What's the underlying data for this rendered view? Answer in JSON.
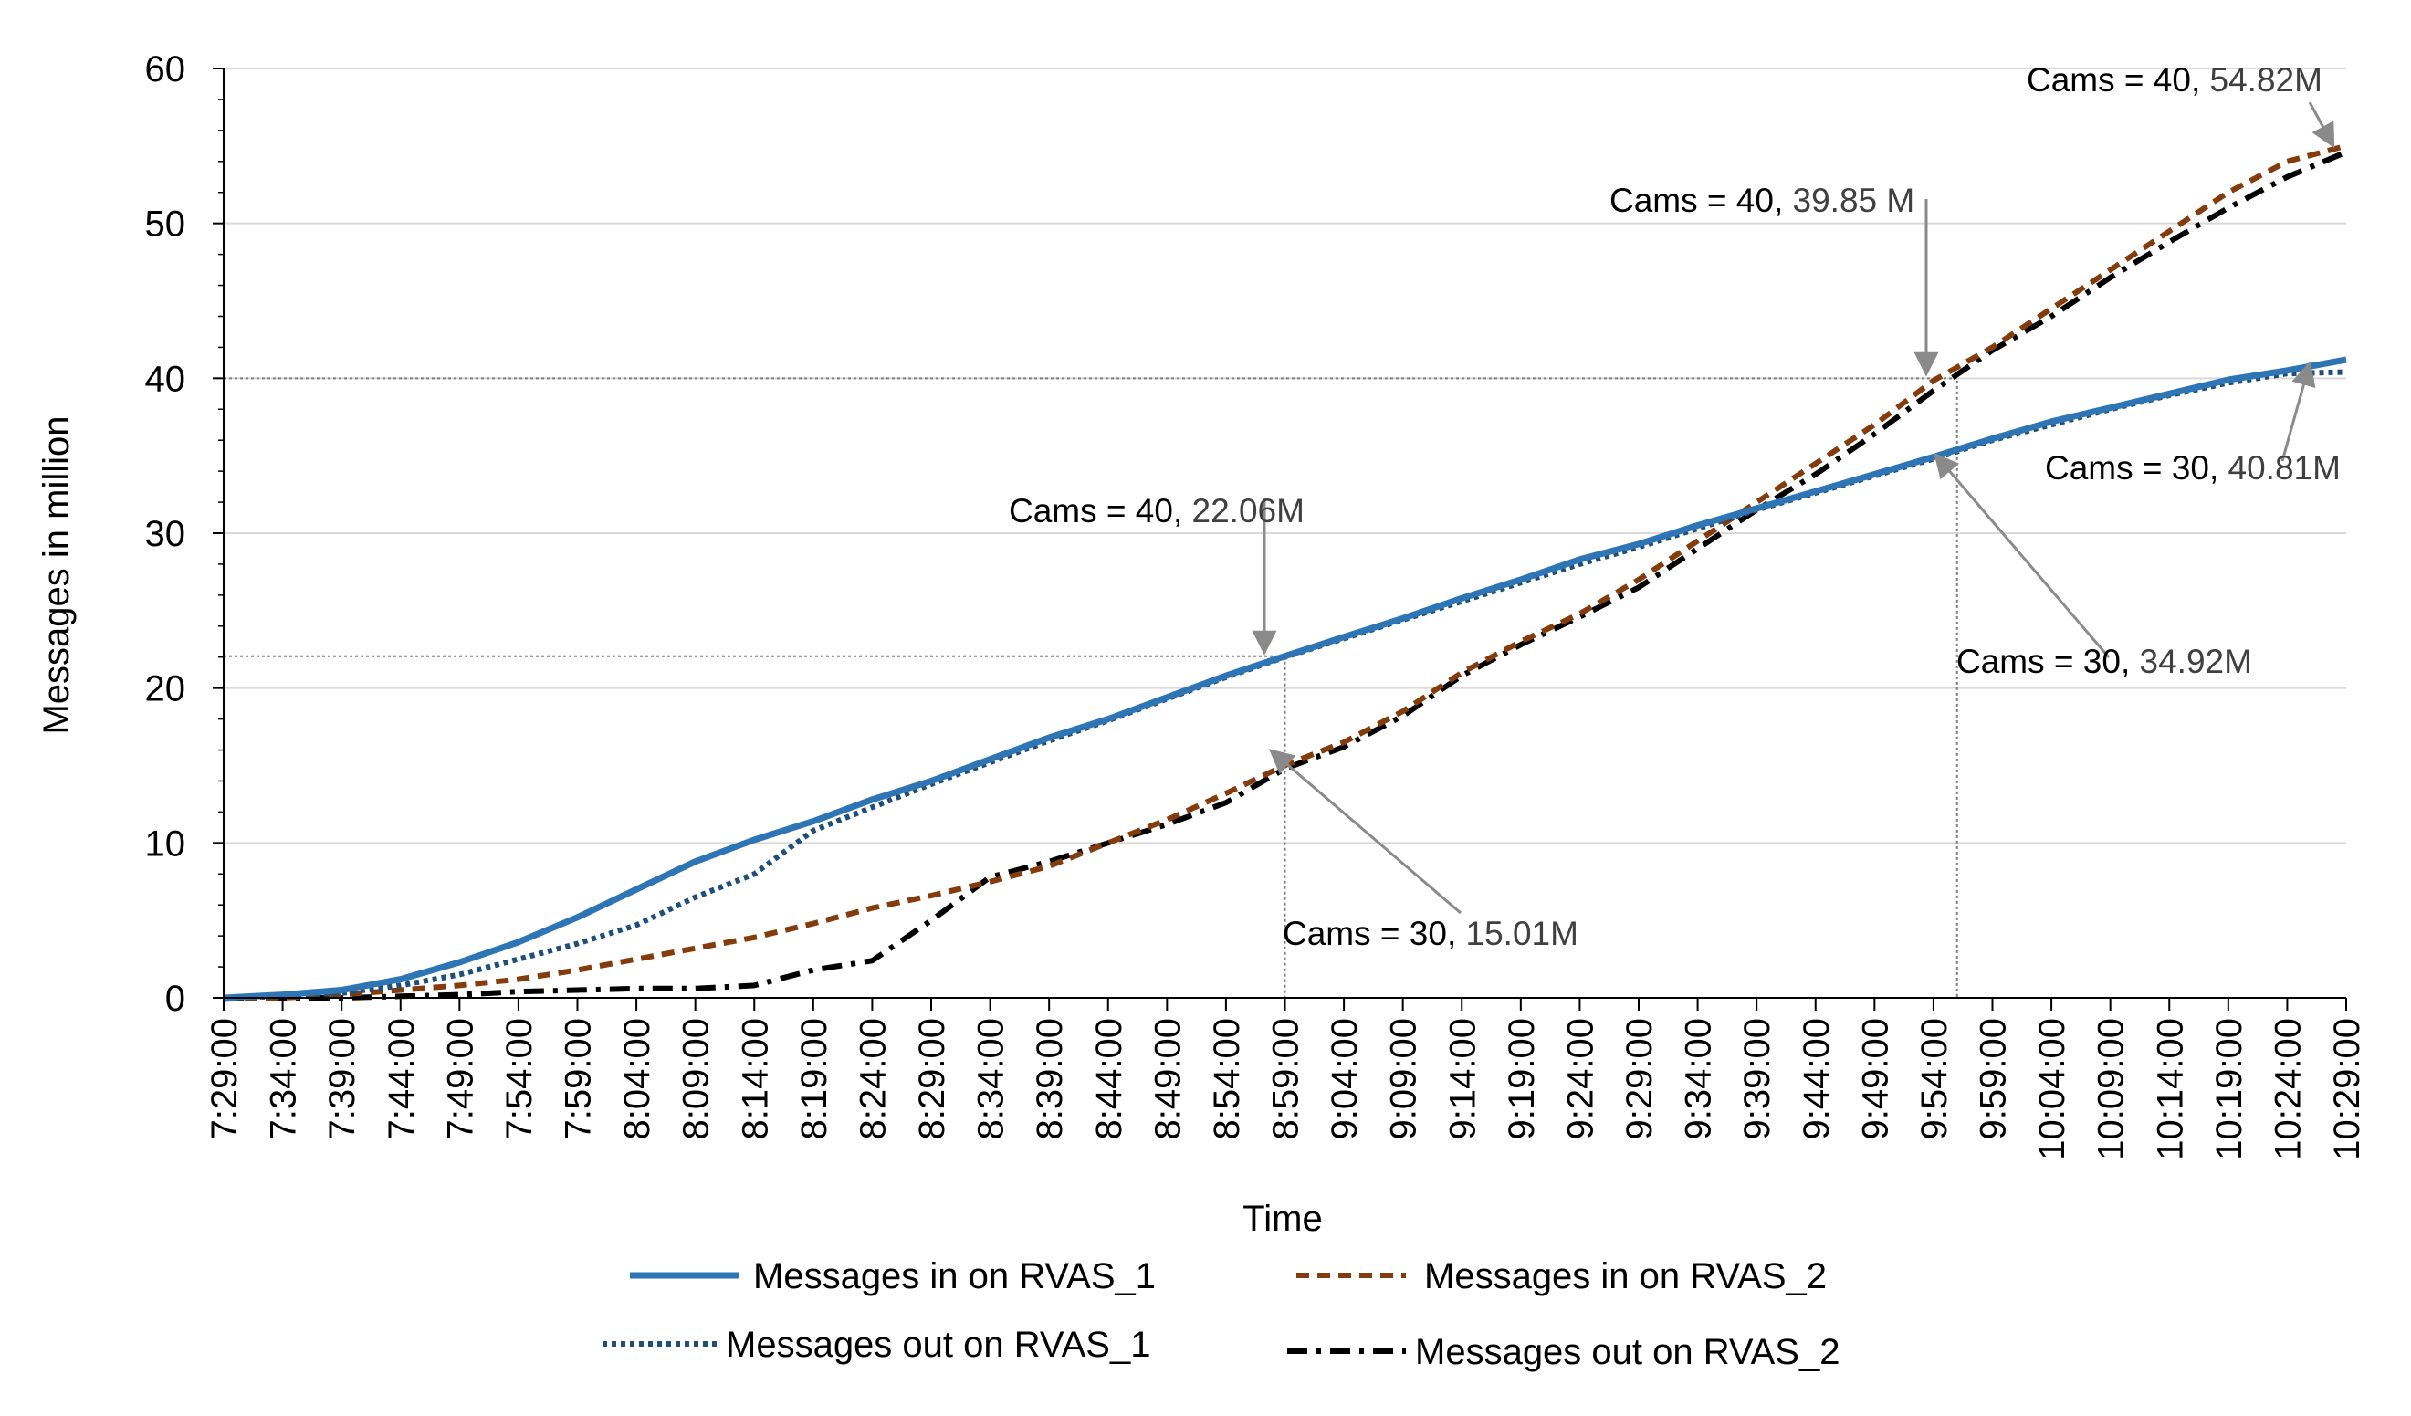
{
  "chart_data": {
    "type": "line",
    "title": "",
    "xlabel": "Time",
    "ylabel": "Messages in million",
    "ylim": [
      0,
      60
    ],
    "yticks": [
      0,
      10,
      20,
      30,
      40,
      50,
      60
    ],
    "grid": "horizontal",
    "legend_position": "bottom",
    "x_tick_labels": [
      "7:29:00",
      "7:34:00",
      "7:39:00",
      "7:44:00",
      "7:49:00",
      "7:54:00",
      "7:59:00",
      "8:04:00",
      "8:09:00",
      "8:14:00",
      "8:19:00",
      "8:24:00",
      "8:29:00",
      "8:34:00",
      "8:39:00",
      "8:44:00",
      "8:49:00",
      "8:54:00",
      "8:59:00",
      "9:04:00",
      "9:09:00",
      "9:14:00",
      "9:19:00",
      "9:24:00",
      "9:29:00",
      "9:34:00",
      "9:39:00",
      "9:44:00",
      "9:49:00",
      "9:54:00",
      "9:59:00",
      "10:04:00",
      "10:09:00",
      "10:14:00",
      "10:19:00",
      "10:24:00",
      "10:29:00"
    ],
    "x_unit": "minutes since 7:29:00",
    "xlim": [
      0,
      180
    ],
    "series": [
      {
        "name": "Messages in on RVAS_1",
        "color": "#2E75B6",
        "style": "solid",
        "x": [
          0,
          5,
          10,
          15,
          20,
          25,
          30,
          35,
          40,
          45,
          50,
          55,
          60,
          65,
          70,
          75,
          80,
          85,
          90,
          95,
          100,
          105,
          110,
          115,
          120,
          125,
          130,
          135,
          140,
          145,
          150,
          155,
          160,
          165,
          170,
          175,
          180
        ],
        "y": [
          0,
          0.2,
          0.5,
          1.2,
          2.3,
          3.6,
          5.2,
          7.0,
          8.8,
          10.2,
          11.4,
          12.8,
          14.0,
          15.4,
          16.8,
          18.0,
          19.4,
          20.8,
          22.06,
          23.3,
          24.5,
          25.8,
          27.0,
          28.3,
          29.3,
          30.5,
          31.6,
          32.7,
          33.8,
          34.92,
          36.1,
          37.2,
          38.1,
          39.0,
          39.9,
          40.5,
          41.2
        ]
      },
      {
        "name": "Messages in on RVAS_2",
        "color": "#843C0C",
        "style": "dashed",
        "x": [
          0,
          5,
          10,
          15,
          20,
          25,
          30,
          35,
          40,
          45,
          50,
          55,
          60,
          65,
          70,
          75,
          80,
          85,
          90,
          95,
          100,
          105,
          110,
          115,
          120,
          125,
          130,
          135,
          140,
          145,
          150,
          155,
          160,
          165,
          170,
          175,
          180
        ],
        "y": [
          0,
          0,
          0.2,
          0.5,
          0.8,
          1.2,
          1.8,
          2.5,
          3.2,
          3.9,
          4.8,
          5.8,
          6.6,
          7.5,
          8.5,
          10.0,
          11.5,
          13.2,
          15.01,
          16.5,
          18.5,
          21.0,
          23.0,
          24.8,
          27.0,
          29.5,
          32.0,
          34.5,
          37.0,
          39.85,
          42.0,
          44.5,
          47.0,
          49.5,
          52.0,
          54.0,
          55.0
        ]
      },
      {
        "name": "Messages out on RVAS_1",
        "color": "#1F4E79",
        "style": "dotted",
        "x": [
          0,
          5,
          10,
          15,
          20,
          25,
          30,
          35,
          40,
          45,
          50,
          55,
          60,
          65,
          70,
          75,
          80,
          85,
          90,
          95,
          100,
          105,
          110,
          115,
          120,
          125,
          130,
          135,
          140,
          145,
          150,
          155,
          160,
          165,
          170,
          175,
          180
        ],
        "y": [
          0,
          0.1,
          0.3,
          0.8,
          1.5,
          2.5,
          3.5,
          4.7,
          6.5,
          8.0,
          10.8,
          12.3,
          13.8,
          15.2,
          16.6,
          17.9,
          19.3,
          20.7,
          22.0,
          23.2,
          24.4,
          25.6,
          26.8,
          28.0,
          29.1,
          30.3,
          31.5,
          32.6,
          33.7,
          34.8,
          36.0,
          37.0,
          38.0,
          38.9,
          39.7,
          40.3,
          40.4
        ]
      },
      {
        "name": "Messages out on RVAS_2",
        "color": "#000000",
        "style": "dashdot",
        "x": [
          0,
          5,
          10,
          15,
          20,
          25,
          30,
          35,
          40,
          45,
          50,
          55,
          60,
          65,
          70,
          75,
          80,
          85,
          90,
          95,
          100,
          105,
          110,
          115,
          120,
          125,
          130,
          135,
          140,
          145,
          150,
          155,
          160,
          165,
          170,
          175,
          180
        ],
        "y": [
          0,
          0,
          0,
          0.1,
          0.2,
          0.4,
          0.5,
          0.6,
          0.6,
          0.8,
          1.8,
          2.4,
          5.0,
          7.8,
          8.8,
          10.0,
          11.2,
          12.6,
          14.8,
          16.2,
          18.2,
          20.8,
          22.8,
          24.6,
          26.5,
          29.0,
          31.5,
          33.8,
          36.4,
          39.2,
          41.8,
          44.0,
          46.5,
          48.8,
          51.0,
          53.0,
          54.6
        ]
      }
    ],
    "reference_lines": [
      {
        "kind": "horizontal",
        "y": 40
      },
      {
        "kind": "horizontal",
        "y": 22.06
      },
      {
        "kind": "vertical",
        "x": 90
      },
      {
        "kind": "vertical",
        "x": 147
      }
    ],
    "annotations": [
      {
        "id": "a1",
        "label": "Cams =  40,",
        "value": "22.06M",
        "target_x": 90,
        "target_y": 22.06
      },
      {
        "id": "a2",
        "label": "Cams = 30,",
        "value": "15.01M",
        "target_x": 90,
        "target_y": 15.01
      },
      {
        "id": "a3",
        "label": "Cams = 40,",
        "value": "39.85 M",
        "target_x": 147,
        "target_y": 39.85
      },
      {
        "id": "a4",
        "label": "Cams = 30,",
        "value": "34.92M",
        "target_x": 147,
        "target_y": 34.92
      },
      {
        "id": "a5",
        "label": "Cams = 40,",
        "value": "54.82M",
        "target_x": 179,
        "target_y": 54.82
      },
      {
        "id": "a6",
        "label": "Cams = 30,",
        "value": "40.81M",
        "target_x": 179,
        "target_y": 40.81
      }
    ]
  }
}
